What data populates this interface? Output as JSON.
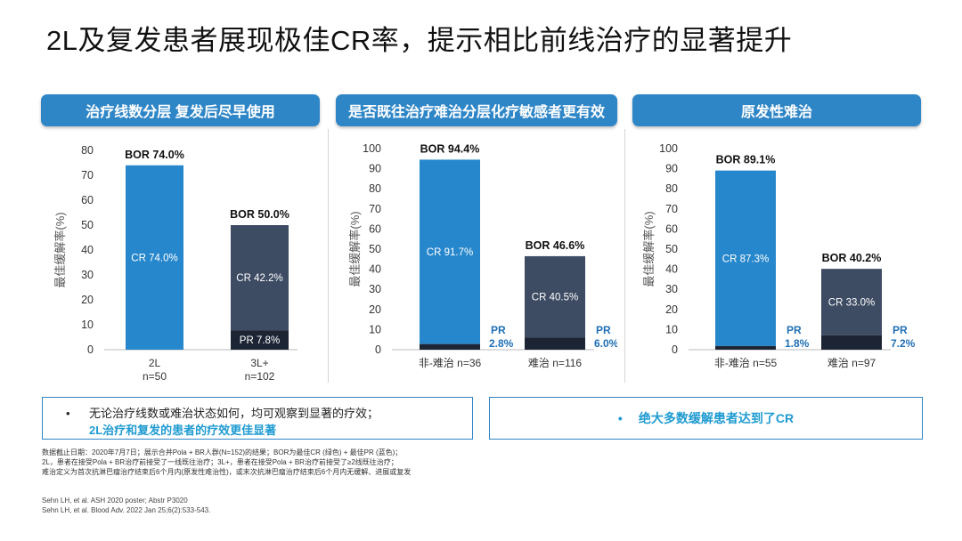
{
  "page": {
    "title": "2L及复发患者展现极佳CR率，提示相比前线治疗的显著提升"
  },
  "panels": [
    {
      "header": "治疗线数分层 复发后尽早使用"
    },
    {
      "header": "是否既往治疗难治分层化疗敏感者更有效"
    },
    {
      "header": "原发性难治"
    }
  ],
  "colors": {
    "cr": "#2787cc",
    "pr_light": "#3d4b63",
    "pr_dark": "#1d2535",
    "header": "#2f86c7",
    "accent_text": "#1f9bd1"
  },
  "chart_data": [
    {
      "type": "bar",
      "stacked": true,
      "ylabel": "最佳缓解率(%)",
      "ylim": [
        0,
        80
      ],
      "yticks": [
        "0",
        "10",
        "20",
        "30",
        "40",
        "50",
        "60",
        "70",
        "80"
      ],
      "categories": [
        "2L\nn=50",
        "3L+\nn=102"
      ],
      "category_lines": [
        [
          "2L",
          "n=50"
        ],
        [
          "3L+",
          "n=102"
        ]
      ],
      "series": [
        {
          "name": "CR",
          "values": [
            74.0,
            42.2
          ],
          "labels": [
            "CR 74.0%",
            "CR 42.2%"
          ]
        },
        {
          "name": "PR",
          "values": [
            0,
            7.8
          ],
          "labels": [
            "",
            "PR 7.8%"
          ]
        }
      ],
      "bor": [
        "BOR 74.0%",
        "BOR 50.0%"
      ],
      "bor_values": [
        74.0,
        50.0
      ]
    },
    {
      "type": "bar",
      "stacked": true,
      "ylabel": "最佳缓解率(%)",
      "ylim": [
        0,
        100
      ],
      "yticks": [
        "0",
        "10",
        "20",
        "30",
        "40",
        "50",
        "60",
        "70",
        "80",
        "90",
        "100"
      ],
      "categories": [
        "非-难治 n=36",
        "难治 n=116"
      ],
      "category_lines": [
        [
          "非-难治 n=36"
        ],
        [
          "难治 n=116"
        ]
      ],
      "series": [
        {
          "name": "CR",
          "values": [
            91.7,
            40.5
          ],
          "labels": [
            "CR 91.7%",
            "CR 40.5%"
          ]
        },
        {
          "name": "PR",
          "values": [
            2.8,
            6.0
          ],
          "labels": [
            "PR\n2.8%",
            "PR\n6.0%"
          ],
          "label_lines": [
            [
              "PR",
              "2.8%"
            ],
            [
              "PR",
              "6.0%"
            ]
          ]
        }
      ],
      "bor": [
        "BOR 94.4%",
        "BOR 46.6%"
      ],
      "bor_values": [
        94.4,
        46.6
      ]
    },
    {
      "type": "bar",
      "stacked": true,
      "ylabel": "最佳缓解率(%)",
      "ylim": [
        0,
        100
      ],
      "yticks": [
        "0",
        "10",
        "20",
        "30",
        "40",
        "50",
        "60",
        "70",
        "80",
        "90",
        "100"
      ],
      "categories": [
        "非-难治 n=55",
        "难治 n=97"
      ],
      "category_lines": [
        [
          "非-难治 n=55"
        ],
        [
          "难治 n=97"
        ]
      ],
      "series": [
        {
          "name": "CR",
          "values": [
            87.3,
            33.0
          ],
          "labels": [
            "CR 87.3%",
            "CR 33.0%"
          ]
        },
        {
          "name": "PR",
          "values": [
            1.8,
            7.2
          ],
          "labels": [
            "PR\n1.8%",
            "PR\n7.2%"
          ],
          "label_lines": [
            [
              "PR",
              "1.8%"
            ],
            [
              "PR",
              "7.2%"
            ]
          ]
        }
      ],
      "bor": [
        "BOR 89.1%",
        "BOR 40.2%"
      ],
      "bor_values": [
        89.1,
        40.2
      ]
    }
  ],
  "summary": {
    "left_line1": "无论治疗线数或难治状态如何，均可观察到显著的疗效；",
    "left_line2": "2L治疗和复发的患者的疗效更佳显著",
    "right": "绝大多数缓解患者达到了CR",
    "bullet": "•"
  },
  "footnotes": [
    "数据截止日期：2020年7月7日；展示合并Pola + BR人群(N=152)的结果；BOR为最佳CR (绿色) + 最佳PR (蓝色)；",
    "2L，患者在接受Pola + BR治疗前接受了一线既往治疗；3L+，患者在接受Pola + BR治疗前接受了≥2线既往治疗；",
    "难治定义为首次抗淋巴瘤治疗结束后6个月内(原发性难治性)，或末次抗淋巴瘤治疗结束后6个月内无缓解、进展或复发"
  ],
  "references": [
    "Sehn LH, et al. ASH 2020 poster; Abstr P3020",
    "Sehn LH, et al. Blood Adv. 2022 Jan 25;6(2):533-543."
  ]
}
